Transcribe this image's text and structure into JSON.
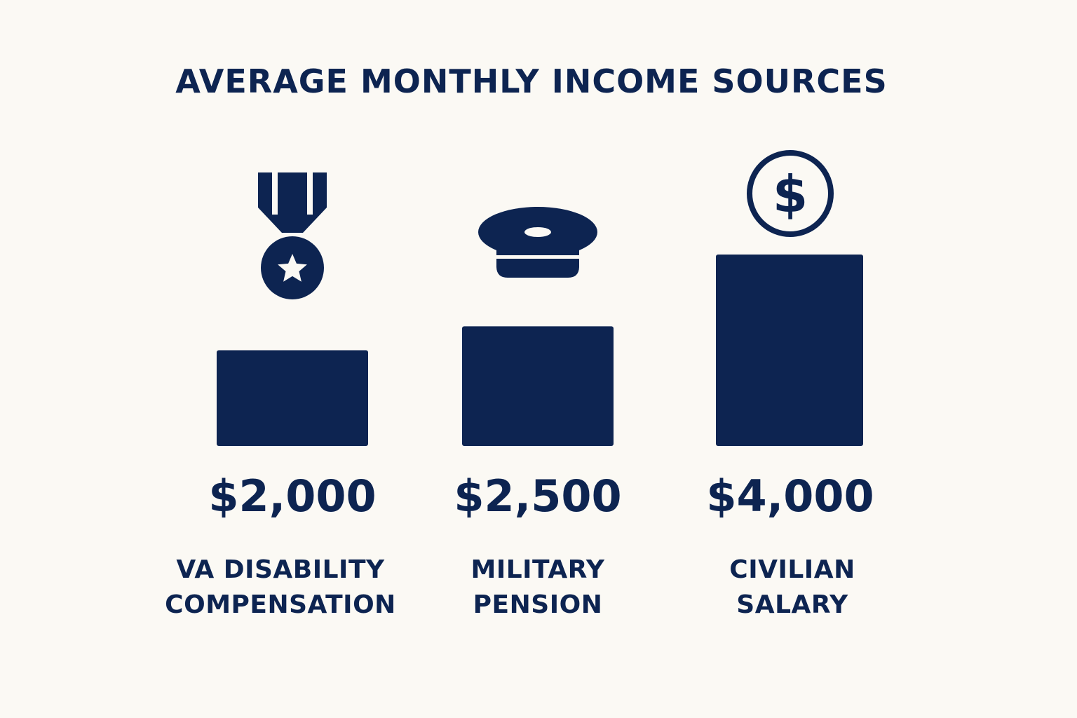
{
  "colors": {
    "background": "#fbf9f4",
    "primary": "#0d2451",
    "accent_light": "#fbf9f4"
  },
  "chart_data": {
    "type": "bar",
    "title": "AVERAGE MONTHLY INCOME SOURCES",
    "categories": [
      "VA DISABILITY\nCOMPENSATION",
      "MILITARY\nPENSION",
      "CIVILIAN\nSALARY"
    ],
    "values": [
      2000,
      2500,
      4000
    ],
    "value_labels": [
      "$2,000",
      "$2,500",
      "$4,000"
    ],
    "icons": [
      "medal-icon",
      "military-cap-icon",
      "dollar-coin-icon"
    ],
    "grid": false,
    "legend": "none"
  }
}
